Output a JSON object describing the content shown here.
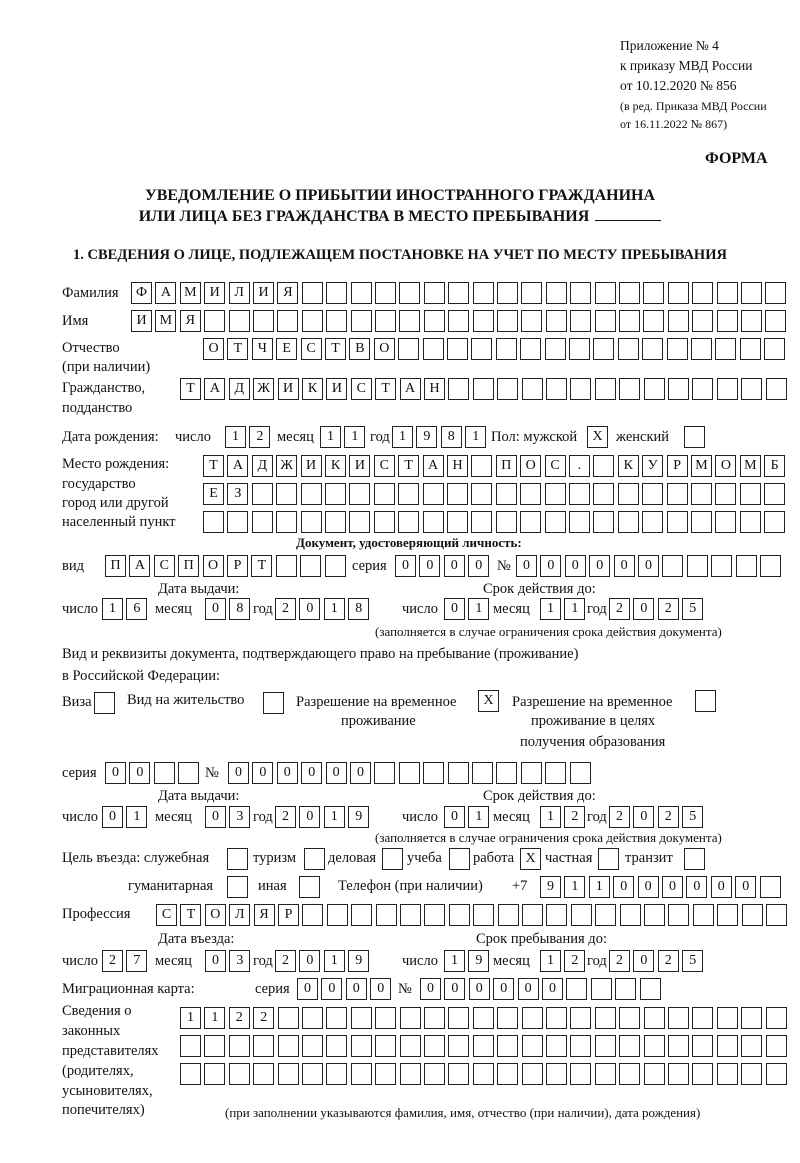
{
  "header": {
    "appendix": "Приложение № 4",
    "order": "к приказу МВД России",
    "order_date": "от 10.12.2020 № 856",
    "edition_1": "(в ред. Приказа МВД России",
    "edition_2": "от 16.11.2022 № 867)",
    "forma": "ФОРМА"
  },
  "title": {
    "line1": "УВЕДОМЛЕНИЕ О ПРИБЫТИИ ИНОСТРАННОГО ГРАЖДАНИНА",
    "line2": "ИЛИ ЛИЦА БЕЗ ГРАЖДАНСТВА В МЕСТО ПРЕБЫВАНИЯ"
  },
  "section1": {
    "heading": "1. СВЕДЕНИЯ О ЛИЦЕ, ПОДЛЕЖАЩЕМ ПОСТАНОВКЕ НА УЧЕТ ПО МЕСТУ ПРЕБЫВАНИЯ"
  },
  "labels": {
    "surname": "Фамилия",
    "name": "Имя",
    "patronymic": "Отчество",
    "patronymic_note": "(при наличии)",
    "citizenship_1": "Гражданство,",
    "citizenship_2": "подданство",
    "birth_date": "Дата рождения:",
    "day": "число",
    "month": "месяц",
    "year": "год",
    "sex": "Пол: мужской",
    "female": "женский",
    "birthplace_1": "Место рождения:",
    "birthplace_2": "государство",
    "birthplace_3": "город или другой",
    "birthplace_4": "населенный пункт",
    "id_doc": "Документ, удостоверяющий личность:",
    "kind": "вид",
    "series": "серия",
    "number": "№",
    "issue_date": "Дата выдачи:",
    "valid_until": "Срок действия до:",
    "valid_note": "(заполняется в случае ограничения срока действия документа)",
    "right_doc_1": "Вид и реквизиты документа, подтверждающего право на пребывание (проживание)",
    "right_doc_2": "в Российской Федерации:",
    "visa": "Виза",
    "residence_permit": "Вид на жительство",
    "temp_residence_1": "Разрешение на временное",
    "temp_residence_2": "проживание",
    "temp_edu_1": "Разрешение на временное",
    "temp_edu_2": "проживание в целях",
    "temp_edu_3": "получения образования",
    "purpose": "Цель въезда: служебная",
    "tourism": "туризм",
    "business": "деловая",
    "study": "учеба",
    "work": "работа",
    "private": "частная",
    "transit": "транзит",
    "humanitarian": "гуманитарная",
    "other": "иная",
    "phone": "Телефон (при наличии)",
    "phone_prefix": "+7",
    "profession": "Профессия",
    "entry_date": "Дата въезда:",
    "stay_until": "Срок пребывания до:",
    "migration_card": "Миграционная карта:",
    "reps_1": "Сведения о",
    "reps_2": "законных",
    "reps_3": "представителях",
    "reps_4": "(родителях,",
    "reps_5": "усыновителях,",
    "reps_6": "попечителях)",
    "reps_note": "(при заполнении указываются фамилия, имя, отчество (при наличии), дата рождения)"
  },
  "values": {
    "surname": "ФАМИЛИЯ",
    "name": "ИМЯ",
    "patronymic": "ОТЧЕСТВО",
    "citizenship": "ТАДЖИКИСТАН",
    "birth_day": "12",
    "birth_month": "11",
    "birth_year": "1981",
    "male": "X",
    "female": "",
    "birthplace_1": "ТАДЖИКИСТАН ПОС. КУРМОМБ",
    "birthplace_2": "ЕЗ",
    "birthplace_3": "",
    "id_kind": "ПАСПОРТ",
    "id_series": "0000",
    "id_number": "000000",
    "id_issue_day": "16",
    "id_issue_month": "08",
    "id_issue_year": "2018",
    "id_valid_day": "01",
    "id_valid_month": "11",
    "id_valid_year": "2025",
    "visa": "",
    "residence_permit": "",
    "temp_residence": "X",
    "temp_edu": "",
    "right_series": "00",
    "right_number": "000000",
    "right_issue_day": "01",
    "right_issue_month": "03",
    "right_issue_year": "2019",
    "right_valid_day": "01",
    "right_valid_month": "12",
    "right_valid_year": "2025",
    "purpose_official": "",
    "purpose_tourism": "",
    "purpose_business": "",
    "purpose_study": "",
    "purpose_work": "X",
    "purpose_private": "",
    "purpose_transit": "",
    "purpose_humanitarian": "",
    "purpose_other": "",
    "phone": "911000000",
    "profession": "СТОЛЯР",
    "entry_day": "27",
    "entry_month": "03",
    "entry_year": "2019",
    "stay_day": "19",
    "stay_month": "12",
    "stay_year": "2025",
    "mig_series": "0000",
    "mig_number": "000000",
    "reps_1": "1122",
    "reps_2": "",
    "reps_3": ""
  }
}
